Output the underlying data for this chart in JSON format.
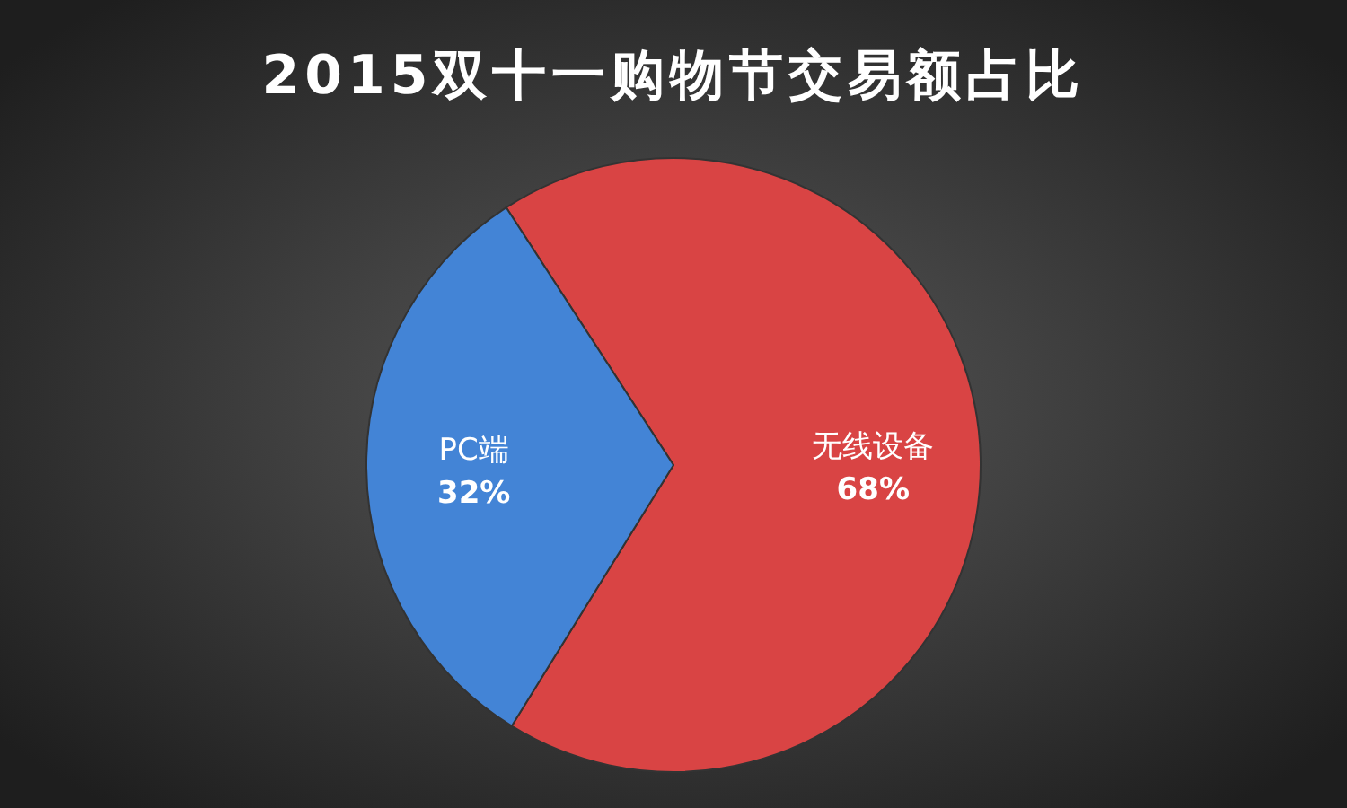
{
  "chart_data": {
    "type": "pie",
    "title": "2015双十一购物节交易额占比",
    "categories": [
      "无线设备",
      "PC端"
    ],
    "values": [
      68,
      32
    ],
    "colors": [
      "#d94444",
      "#4384d6"
    ],
    "value_labels": [
      "68%",
      "32%"
    ]
  }
}
